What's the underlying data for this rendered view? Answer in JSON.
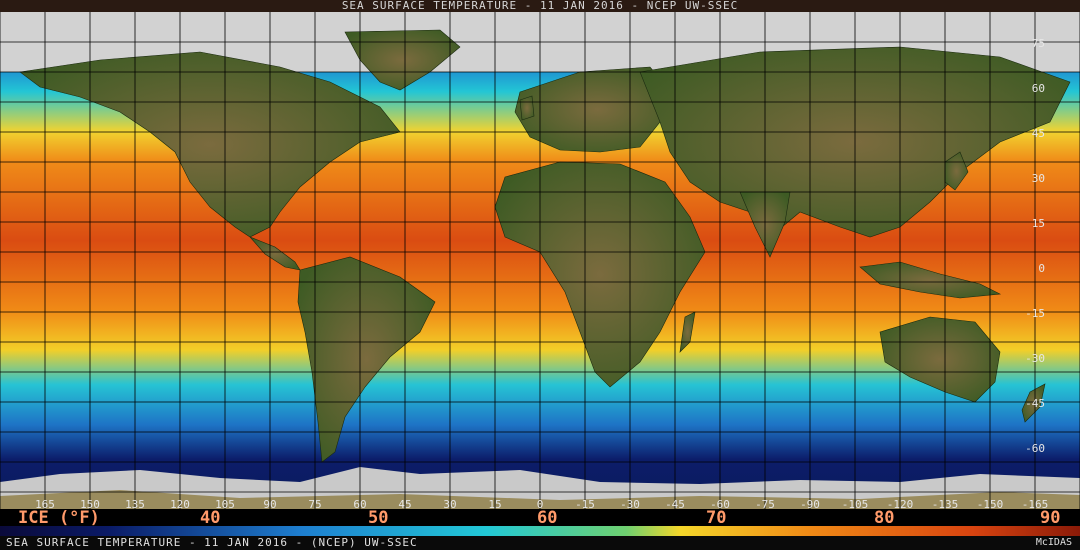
{
  "header": {
    "title": "SEA SURFACE TEMPERATURE - 11 JAN 2016 - NCEP UW-SSEC"
  },
  "footer": {
    "caption": "SEA SURFACE TEMPERATURE - 11 JAN 2016 - (NCEP)    UW-SSEC",
    "credit": "McIDAS"
  },
  "legend": {
    "title": "ICE (°F)",
    "values": [
      "40",
      "50",
      "60",
      "70",
      "80",
      "90"
    ]
  },
  "latitude_labels": [
    "75",
    "60",
    "45",
    "30",
    "15",
    "0",
    "-15",
    "-30",
    "-45",
    "-60"
  ],
  "longitude_labels": [
    "165",
    "150",
    "135",
    "120",
    "105",
    "90",
    "75",
    "60",
    "45",
    "30",
    "15",
    "0",
    "-15",
    "-30",
    "-45",
    "-60",
    "-75",
    "-90",
    "-105",
    "-120",
    "-135",
    "-150",
    "-165"
  ],
  "colors": {
    "ice": "#d2d2d2",
    "ocean_cold": "#0a1a66",
    "ocean_cool": "#1e7fd0",
    "ocean_mild": "#22c8d6",
    "ocean_warm_yellow": "#f4d62a",
    "ocean_warm_orange": "#f08a16",
    "ocean_hot": "#d84410",
    "land_green": "#3c5a22",
    "land_tan": "#8a7a4a",
    "grid": "#000000",
    "legend_text": "#ff9a6a"
  }
}
